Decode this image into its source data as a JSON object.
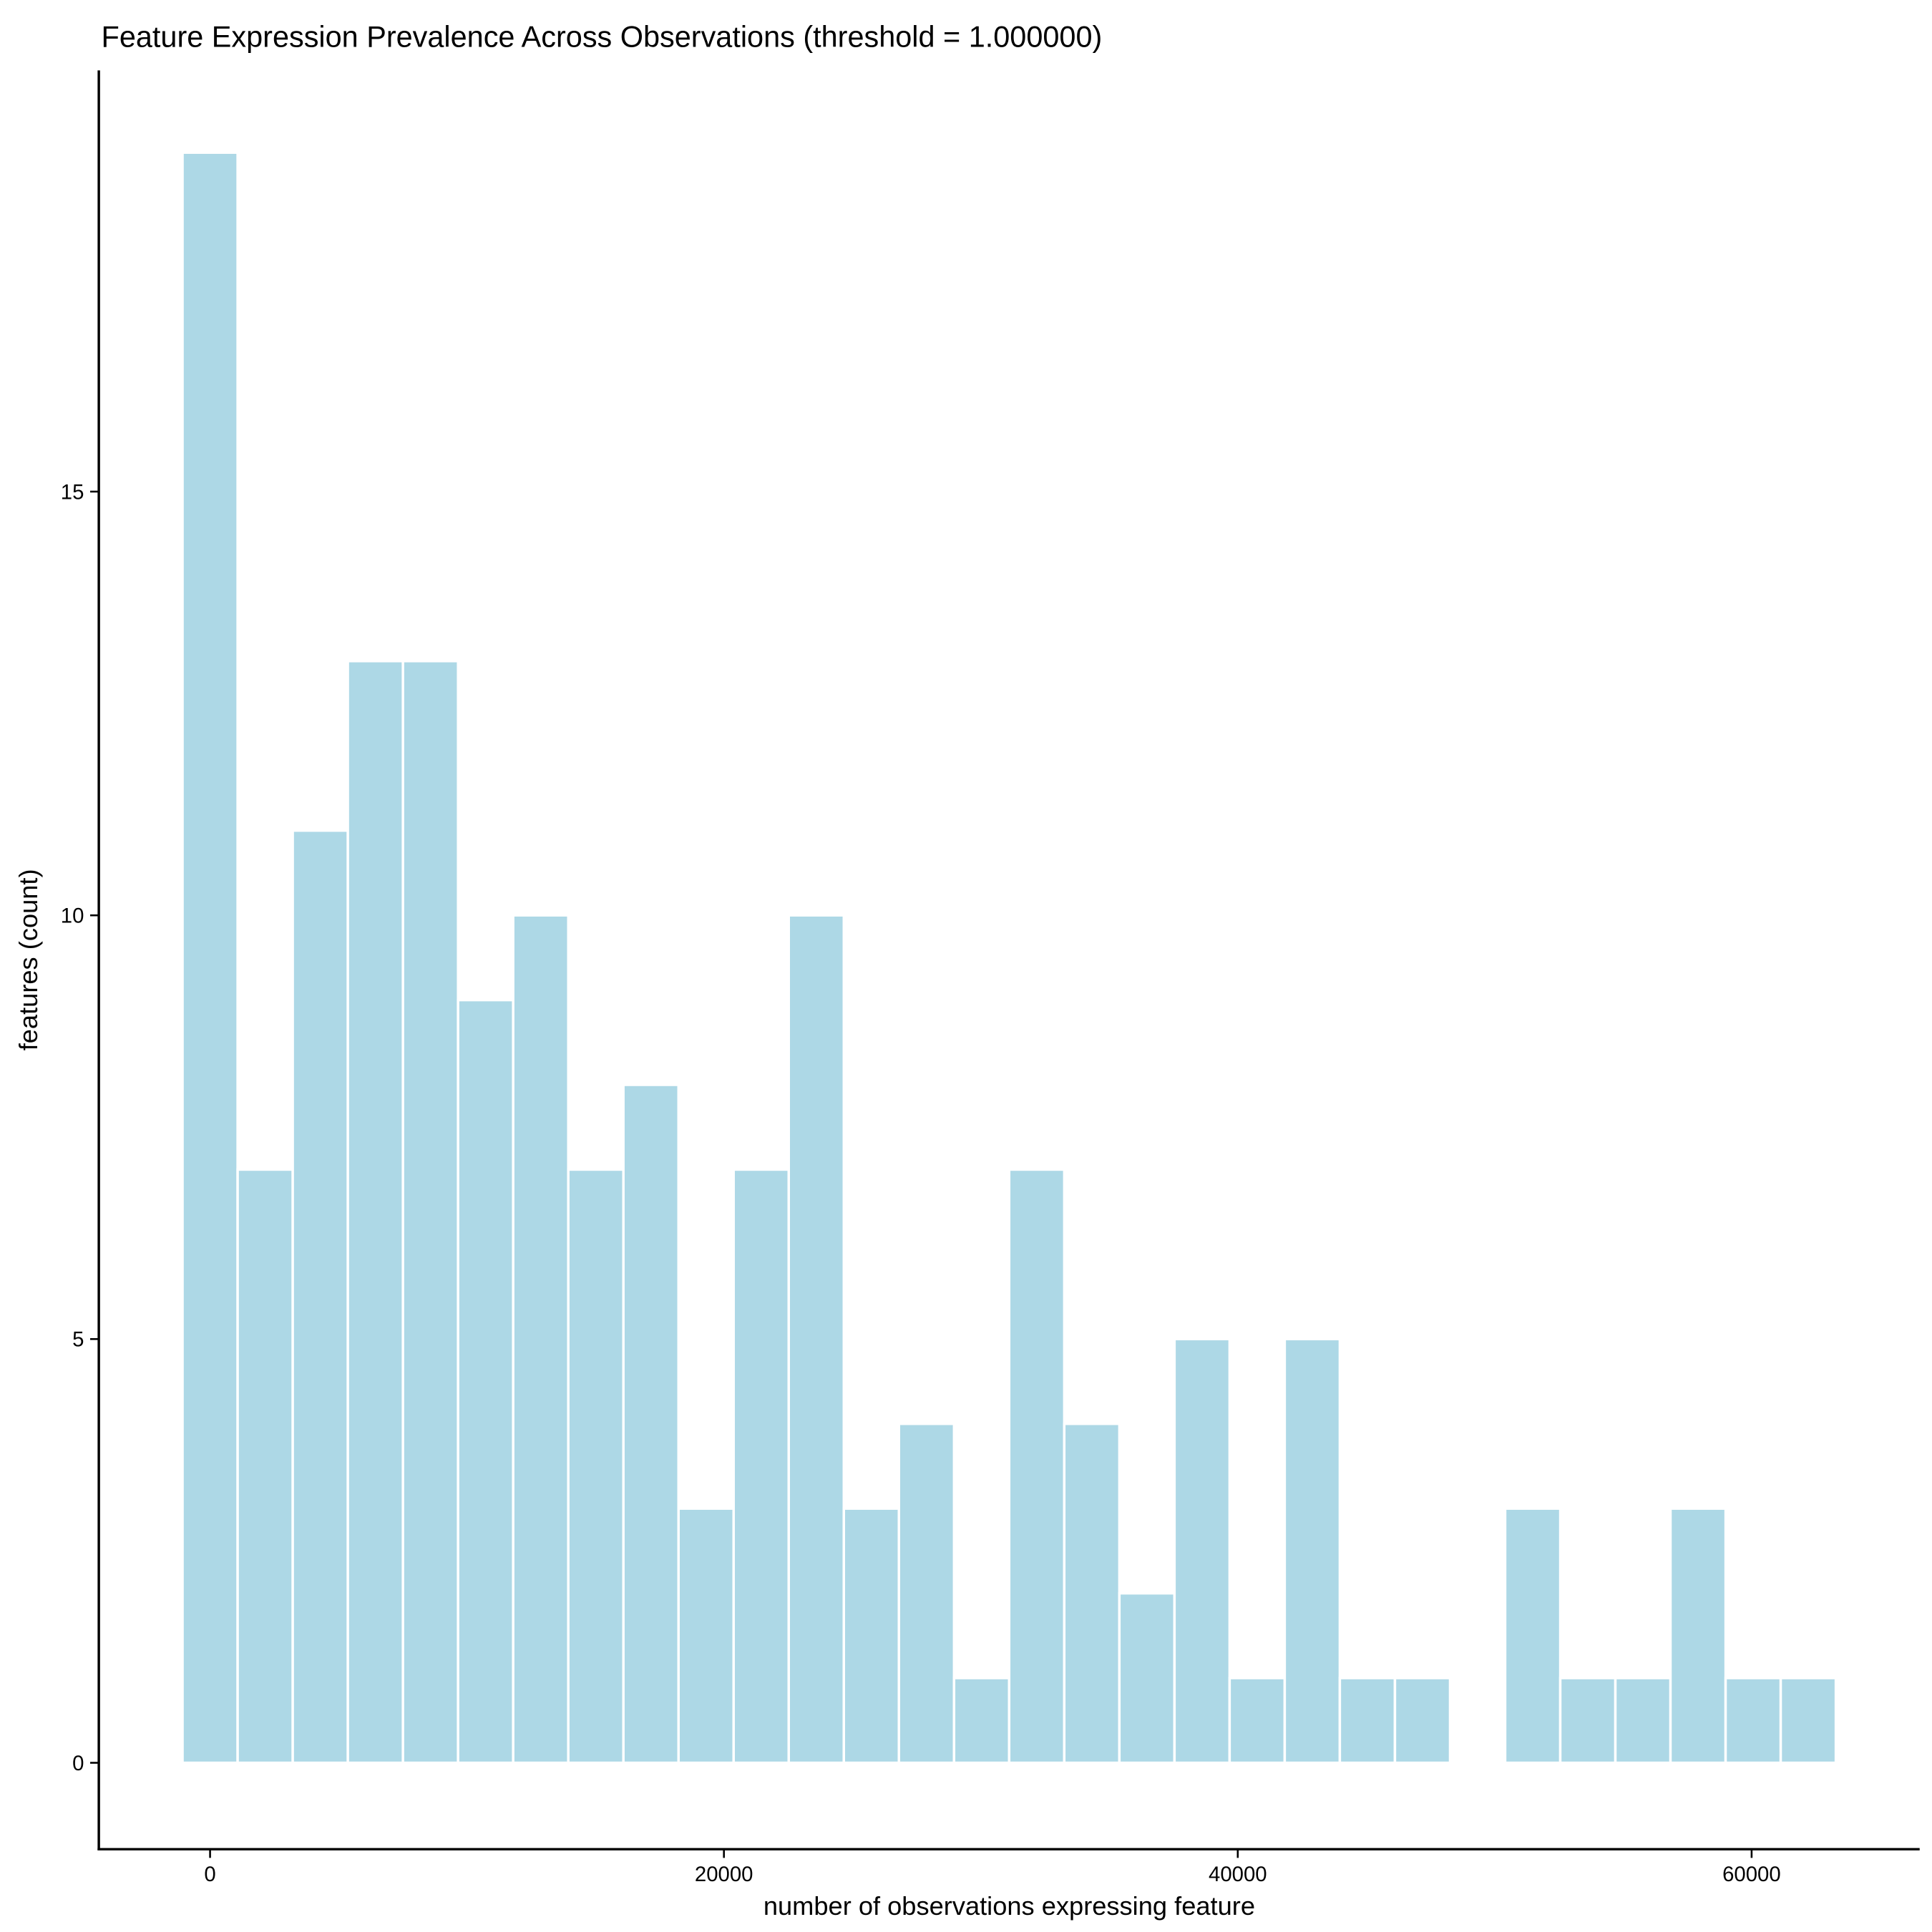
{
  "chart_data": {
    "type": "bar",
    "title": "Feature Expression Prevalence Across Observations (threshold = 1.000000)",
    "xlabel": "number of observations expressing feature",
    "ylabel": "features (count)",
    "bin_width": 2145,
    "bin_centers": [
      0,
      2145,
      4290,
      6435,
      8580,
      10725,
      12870,
      15015,
      17160,
      19305,
      21450,
      23595,
      25740,
      27885,
      30030,
      32175,
      34320,
      36465,
      38610,
      40755,
      42900,
      45045,
      47190,
      49335,
      51480,
      53625,
      55770,
      57915,
      60060,
      62205
    ],
    "values": [
      19,
      7,
      11,
      13,
      13,
      9,
      10,
      7,
      8,
      3,
      7,
      10,
      3,
      4,
      1,
      7,
      4,
      2,
      5,
      1,
      5,
      1,
      1,
      0,
      3,
      1,
      1,
      3,
      1,
      1
    ],
    "xlim": [
      -4330,
      66540
    ],
    "ylim": [
      -1.02,
      19.97
    ],
    "xticks": [
      0,
      20000,
      40000,
      60000
    ],
    "xtick_labels": [
      "0",
      "20000",
      "40000",
      "60000"
    ],
    "yticks": [
      0,
      5,
      10,
      15
    ],
    "ytick_labels": [
      "0",
      "5",
      "10",
      "15"
    ],
    "grid": false,
    "bar_color": "#ADD8E6",
    "bar_edge_color": "#FFFFFF"
  }
}
